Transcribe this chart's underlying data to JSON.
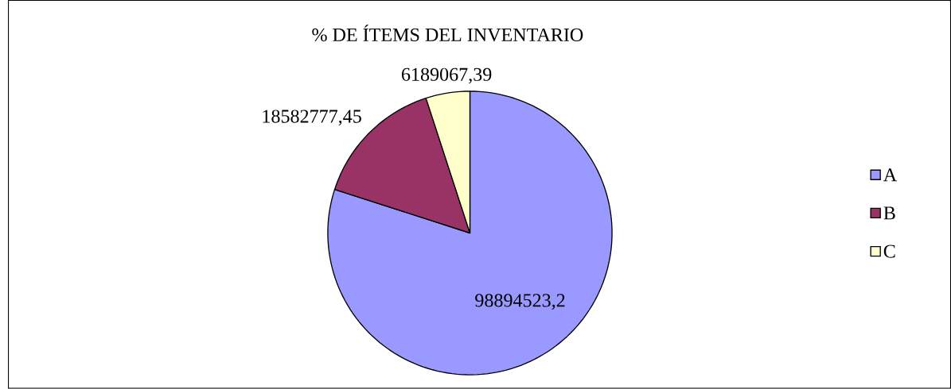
{
  "chart_data": {
    "type": "pie",
    "title": "% DE ÍTEMS DEL INVENTARIO",
    "categories": [
      "A",
      "B",
      "C"
    ],
    "values": [
      98894523.2,
      18582777.45,
      6189067.39
    ],
    "value_labels": [
      "98894523,2",
      "18582777,45",
      "6189067,39"
    ],
    "colors": [
      "#9999ff",
      "#993366",
      "#ffffcc"
    ],
    "legend": "right"
  }
}
